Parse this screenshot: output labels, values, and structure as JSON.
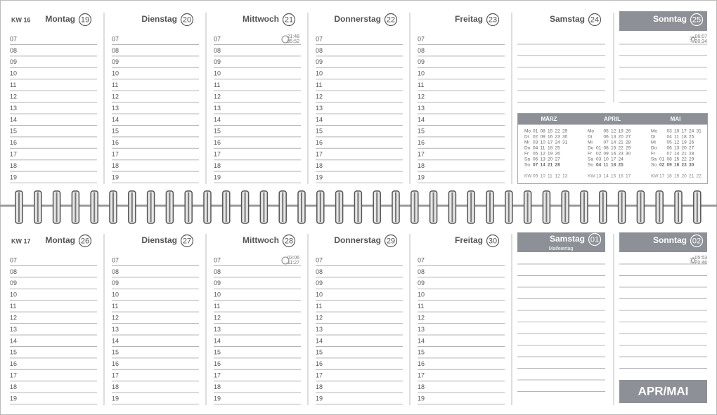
{
  "weeks": [
    {
      "kw": "KW 16",
      "days": [
        {
          "name": "Montag",
          "date": "19"
        },
        {
          "name": "Dienstag",
          "date": "20"
        },
        {
          "name": "Mittwoch",
          "date": "21",
          "times": [
            "21:48",
            "05:52"
          ]
        },
        {
          "name": "Donnerstag",
          "date": "22"
        },
        {
          "name": "Freitag",
          "date": "23"
        },
        {
          "name": "Samstag",
          "date": "24"
        },
        {
          "name": "Sonntag",
          "date": "25",
          "highlight": true,
          "times": [
            "06:07",
            "20:34"
          ]
        }
      ]
    },
    {
      "kw": "KW 17",
      "days": [
        {
          "name": "Montag",
          "date": "26"
        },
        {
          "name": "Dienstag",
          "date": "27"
        },
        {
          "name": "Mittwoch",
          "date": "28",
          "times": [
            "03:06",
            "11:27"
          ]
        },
        {
          "name": "Donnerstag",
          "date": "29"
        },
        {
          "name": "Freitag",
          "date": "30"
        },
        {
          "name": "Samstag",
          "date": "01",
          "highlight": true,
          "note": "Maifeiertag"
        },
        {
          "name": "Sonntag",
          "date": "02",
          "highlight": true,
          "times": [
            "05:53",
            "20:46"
          ]
        }
      ]
    }
  ],
  "hours": [
    "07",
    "08",
    "09",
    "10",
    "11",
    "12",
    "13",
    "14",
    "15",
    "16",
    "17",
    "18",
    "19"
  ],
  "mini_calendar": {
    "months": [
      {
        "name": "MÄRZ",
        "rows": [
          [
            "Mo",
            "01",
            "08",
            "15",
            "22",
            "29"
          ],
          [
            "Di",
            "02",
            "09",
            "16",
            "23",
            "30"
          ],
          [
            "Mi",
            "03",
            "10",
            "17",
            "24",
            "31"
          ],
          [
            "Do",
            "04",
            "11",
            "18",
            "25"
          ],
          [
            "Fr",
            "05",
            "12",
            "19",
            "26"
          ],
          [
            "Sa",
            "06",
            "13",
            "20",
            "27"
          ],
          [
            "So",
            "07",
            "14",
            "21",
            "28"
          ],
          [
            "KW",
            "09",
            "10",
            "11",
            "12",
            "13"
          ]
        ]
      },
      {
        "name": "APRIL",
        "rows": [
          [
            "Mo",
            null,
            "05",
            "12",
            "19",
            "26"
          ],
          [
            "Di",
            null,
            "06",
            "13",
            "20",
            "27"
          ],
          [
            "Mi",
            null,
            "07",
            "14",
            "21",
            "28"
          ],
          [
            "Do",
            "01",
            "08",
            "15",
            "22",
            "29"
          ],
          [
            "Fr",
            "02",
            "09",
            "16",
            "23",
            "30"
          ],
          [
            "Sa",
            "03",
            "10",
            "17",
            "24"
          ],
          [
            "So",
            "04",
            "11",
            "18",
            "25"
          ],
          [
            "KW",
            "13",
            "14",
            "15",
            "16",
            "17"
          ]
        ]
      },
      {
        "name": "MAI",
        "rows": [
          [
            "Mo",
            null,
            "03",
            "10",
            "17",
            "24",
            "31"
          ],
          [
            "Di",
            null,
            "04",
            "11",
            "18",
            "25"
          ],
          [
            "Mi",
            null,
            "05",
            "12",
            "19",
            "26"
          ],
          [
            "Do",
            null,
            "06",
            "13",
            "20",
            "27"
          ],
          [
            "Fr",
            null,
            "07",
            "14",
            "21",
            "28"
          ],
          [
            "Sa",
            "01",
            "08",
            "15",
            "22",
            "29"
          ],
          [
            "So",
            "02",
            "09",
            "16",
            "23",
            "30"
          ],
          [
            "KW",
            "17",
            "18",
            "19",
            "20",
            "21",
            "22"
          ]
        ]
      }
    ]
  },
  "footer_label": "APR/MAI"
}
